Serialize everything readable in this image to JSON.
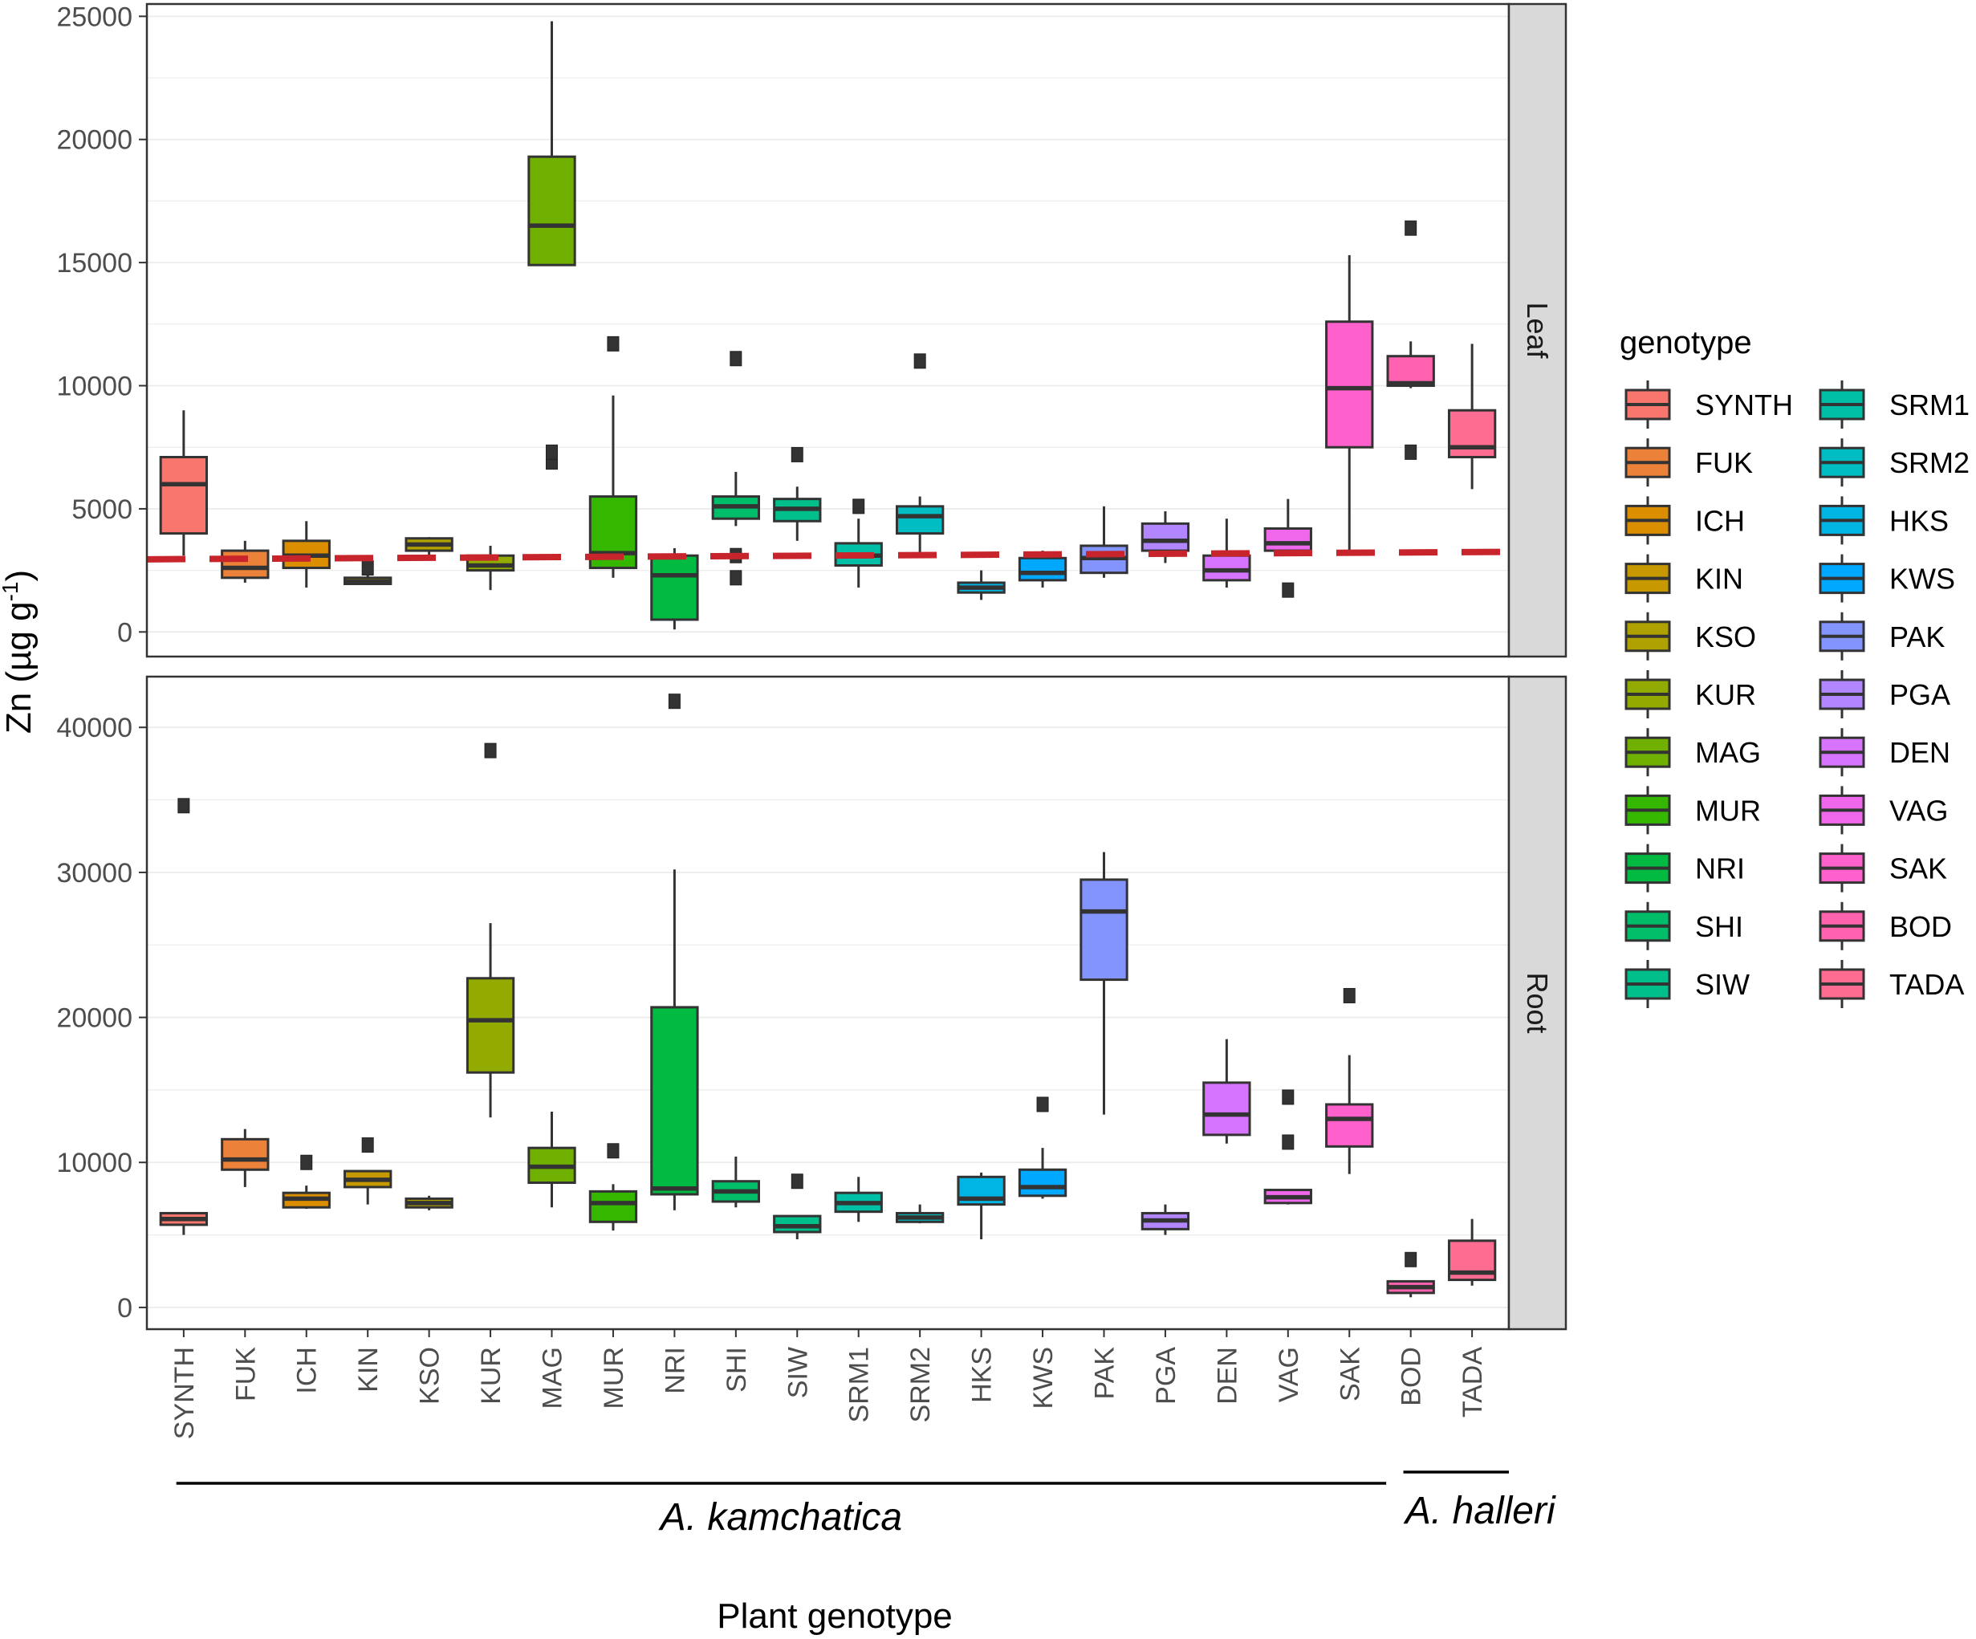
{
  "chart_data": {
    "type": "boxplot",
    "xlabel": "Plant genotype",
    "ylabel": "Zn (µg g",
    "ylabel_sup": "-1",
    "ylabel_close": ")",
    "legend_title": "genotype",
    "legend_position": "right",
    "categories": [
      "SYNTH",
      "FUK",
      "ICH",
      "KIN",
      "KSO",
      "KUR",
      "MAG",
      "MUR",
      "NRI",
      "SHI",
      "SIW",
      "SRM1",
      "SRM2",
      "HKS",
      "KWS",
      "PAK",
      "PGA",
      "DEN",
      "VAG",
      "SAK",
      "BOD",
      "TADA"
    ],
    "colors": [
      "#F8766D",
      "#EC8239",
      "#DB8E00",
      "#C79800",
      "#AFA100",
      "#93AA00",
      "#6FB000",
      "#35B700",
      "#00BA42",
      "#00BD6A",
      "#00BF8A",
      "#00BFA7",
      "#00BCC3",
      "#00B4E4",
      "#00A9FF",
      "#8494FF",
      "#B186FF",
      "#D674FD",
      "#EF67EB",
      "#FF61CC",
      "#FF62AE",
      "#FF6C91"
    ],
    "groups": [
      {
        "label": "A. kamchatica",
        "from": "SYNTH",
        "to": "SAK"
      },
      {
        "label": "A. halleri",
        "from": "BOD",
        "to": "TADA"
      }
    ],
    "facets": [
      {
        "label": "Leaf",
        "ylim": [
          -1000,
          25500
        ],
        "yticks": [
          0,
          5000,
          10000,
          15000,
          20000,
          25000
        ],
        "reference_line": {
          "style": "dashed",
          "color": "#C8242B",
          "from": 2950,
          "to": 3250
        },
        "boxes": [
          {
            "min": 3100,
            "q1": 4000,
            "median": 6000,
            "q3": 7100,
            "max": 9000,
            "outliers": []
          },
          {
            "min": 2000,
            "q1": 2200,
            "median": 2600,
            "q3": 3300,
            "max": 3700,
            "outliers": []
          },
          {
            "min": 1800,
            "q1": 2600,
            "median": 3100,
            "q3": 3700,
            "max": 4500,
            "outliers": []
          },
          {
            "min": 1900,
            "q1": 1950,
            "median": 2050,
            "q3": 2200,
            "max": 2500,
            "outliers": [
              2600
            ]
          },
          {
            "min": 2900,
            "q1": 3300,
            "median": 3550,
            "q3": 3800,
            "max": 3850,
            "outliers": []
          },
          {
            "min": 1700,
            "q1": 2500,
            "median": 2700,
            "q3": 3100,
            "max": 3500,
            "outliers": []
          },
          {
            "min": 14900,
            "q1": 14900,
            "median": 16500,
            "q3": 19300,
            "max": 24800,
            "outliers": [
              6900,
              7300
            ]
          },
          {
            "min": 2200,
            "q1": 2600,
            "median": 3200,
            "q3": 5500,
            "max": 9600,
            "outliers": [
              11700
            ]
          },
          {
            "min": 100,
            "q1": 500,
            "median": 2300,
            "q3": 3100,
            "max": 3400,
            "outliers": []
          },
          {
            "min": 4300,
            "q1": 4600,
            "median": 5100,
            "q3": 5500,
            "max": 6500,
            "outliers": [
              2200,
              3100,
              11100
            ]
          },
          {
            "min": 3700,
            "q1": 4500,
            "median": 5000,
            "q3": 5400,
            "max": 5900,
            "outliers": [
              7200
            ]
          },
          {
            "min": 1800,
            "q1": 2700,
            "median": 3100,
            "q3": 3600,
            "max": 4600,
            "outliers": [
              5100
            ]
          },
          {
            "min": 3000,
            "q1": 4000,
            "median": 4700,
            "q3": 5100,
            "max": 5500,
            "outliers": [
              11000
            ]
          },
          {
            "min": 1300,
            "q1": 1600,
            "median": 1800,
            "q3": 2000,
            "max": 2500,
            "outliers": []
          },
          {
            "min": 1800,
            "q1": 2100,
            "median": 2400,
            "q3": 3000,
            "max": 3300,
            "outliers": []
          },
          {
            "min": 2200,
            "q1": 2400,
            "median": 3000,
            "q3": 3500,
            "max": 5100,
            "outliers": []
          },
          {
            "min": 2800,
            "q1": 3300,
            "median": 3700,
            "q3": 4400,
            "max": 4900,
            "outliers": []
          },
          {
            "min": 1800,
            "q1": 2100,
            "median": 2500,
            "q3": 3100,
            "max": 4600,
            "outliers": []
          },
          {
            "min": 3100,
            "q1": 3300,
            "median": 3600,
            "q3": 4200,
            "max": 5400,
            "outliers": [
              1700
            ]
          },
          {
            "min": 3200,
            "q1": 7500,
            "median": 9900,
            "q3": 12600,
            "max": 15300,
            "outliers": []
          },
          {
            "min": 9900,
            "q1": 10000,
            "median": 10100,
            "q3": 11200,
            "max": 11800,
            "outliers": [
              7300,
              16400
            ]
          },
          {
            "min": 5800,
            "q1": 7100,
            "median": 7500,
            "q3": 9000,
            "max": 11700,
            "outliers": []
          }
        ]
      },
      {
        "label": "Root",
        "ylim": [
          -1500,
          43500
        ],
        "yticks": [
          0,
          10000,
          20000,
          30000,
          40000
        ],
        "reference_line": null,
        "boxes": [
          {
            "min": 5000,
            "q1": 5700,
            "median": 6100,
            "q3": 6500,
            "max": 6500,
            "outliers": [
              34600
            ]
          },
          {
            "min": 8300,
            "q1": 9500,
            "median": 10200,
            "q3": 11600,
            "max": 12300,
            "outliers": []
          },
          {
            "min": 6800,
            "q1": 6900,
            "median": 7500,
            "q3": 7900,
            "max": 8400,
            "outliers": [
              10000
            ]
          },
          {
            "min": 7100,
            "q1": 8300,
            "median": 8800,
            "q3": 9400,
            "max": 9400,
            "outliers": [
              11200
            ]
          },
          {
            "min": 6700,
            "q1": 6900,
            "median": 7200,
            "q3": 7500,
            "max": 7700,
            "outliers": []
          },
          {
            "min": 13100,
            "q1": 16200,
            "median": 19800,
            "q3": 22700,
            "max": 26500,
            "outliers": [
              38400
            ]
          },
          {
            "min": 6900,
            "q1": 8600,
            "median": 9700,
            "q3": 11000,
            "max": 13500,
            "outliers": []
          },
          {
            "min": 5300,
            "q1": 5900,
            "median": 7200,
            "q3": 8000,
            "max": 8500,
            "outliers": [
              10800
            ]
          },
          {
            "min": 6700,
            "q1": 7800,
            "median": 8200,
            "q3": 20700,
            "max": 30200,
            "outliers": [
              41800
            ]
          },
          {
            "min": 6900,
            "q1": 7300,
            "median": 8000,
            "q3": 8700,
            "max": 10400,
            "outliers": []
          },
          {
            "min": 4700,
            "q1": 5200,
            "median": 5600,
            "q3": 6300,
            "max": 6300,
            "outliers": [
              8700
            ]
          },
          {
            "min": 5900,
            "q1": 6600,
            "median": 7200,
            "q3": 7900,
            "max": 9000,
            "outliers": []
          },
          {
            "min": 5800,
            "q1": 5900,
            "median": 6200,
            "q3": 6500,
            "max": 7100,
            "outliers": []
          },
          {
            "min": 4700,
            "q1": 7100,
            "median": 7500,
            "q3": 9000,
            "max": 9300,
            "outliers": []
          },
          {
            "min": 7500,
            "q1": 7700,
            "median": 8300,
            "q3": 9500,
            "max": 11000,
            "outliers": [
              14000
            ]
          },
          {
            "min": 13300,
            "q1": 22600,
            "median": 27300,
            "q3": 29500,
            "max": 31400,
            "outliers": []
          },
          {
            "min": 5000,
            "q1": 5400,
            "median": 6000,
            "q3": 6500,
            "max": 7100,
            "outliers": []
          },
          {
            "min": 11300,
            "q1": 11900,
            "median": 13300,
            "q3": 15500,
            "max": 18500,
            "outliers": []
          },
          {
            "min": 7100,
            "q1": 7200,
            "median": 7600,
            "q3": 8100,
            "max": 8100,
            "outliers": [
              11400,
              14500
            ]
          },
          {
            "min": 9200,
            "q1": 11100,
            "median": 13000,
            "q3": 14000,
            "max": 17400,
            "outliers": [
              21500
            ]
          },
          {
            "min": 700,
            "q1": 1000,
            "median": 1400,
            "q3": 1800,
            "max": 1800,
            "outliers": [
              3300
            ]
          },
          {
            "min": 1500,
            "q1": 1900,
            "median": 2400,
            "q3": 4600,
            "max": 6100,
            "outliers": []
          }
        ]
      }
    ]
  }
}
